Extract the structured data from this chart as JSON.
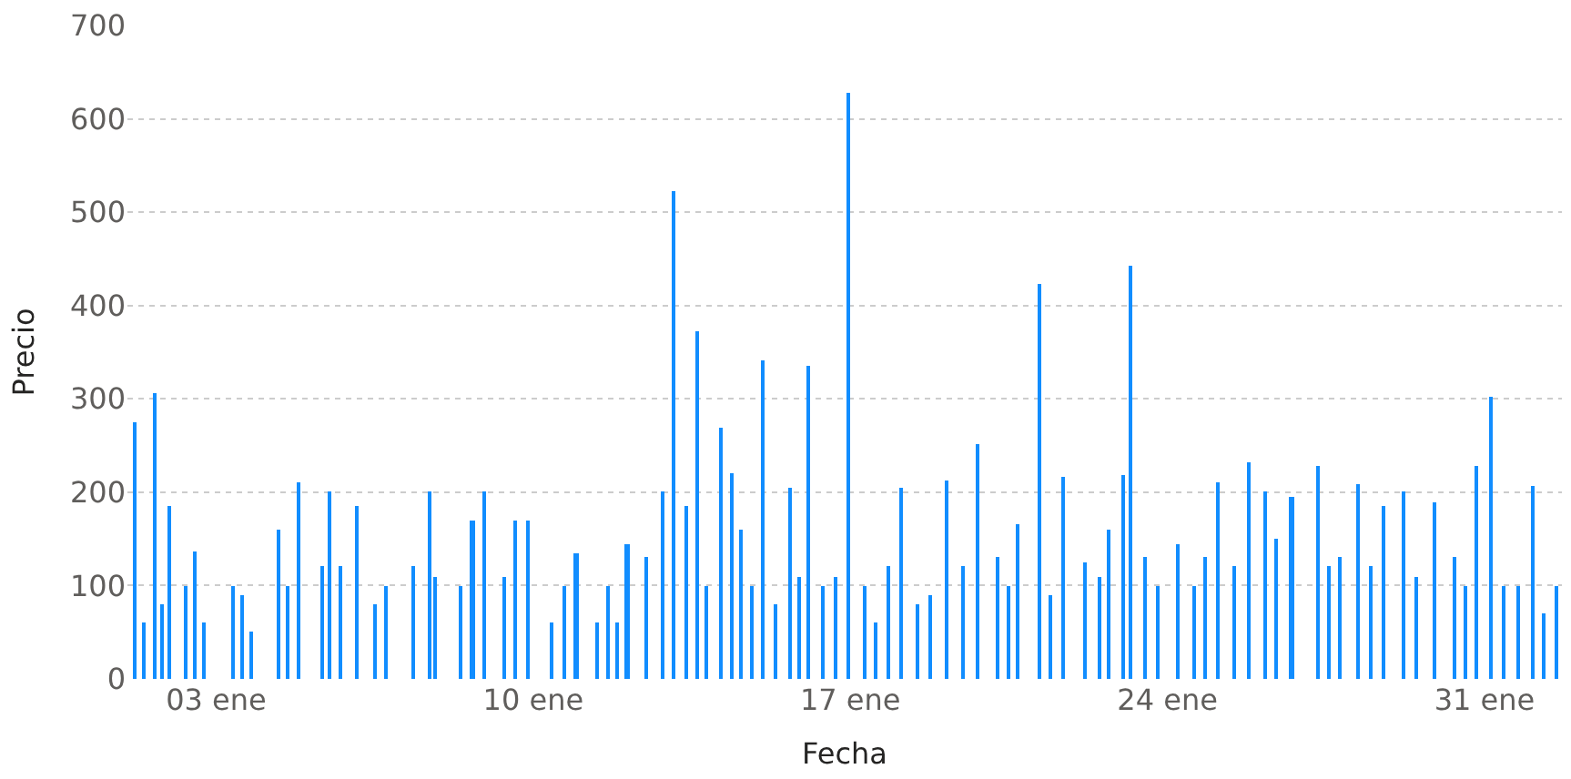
{
  "chart_data": {
    "type": "bar",
    "xlabel": "Fecha",
    "ylabel": "Precio",
    "color": "#118dff",
    "x": [
      "--01-01T05:00",
      "--01-01T10:00",
      "--01-01T16:00",
      "--01-01T20:00",
      "--01-01T23:00",
      "--01-02T08:00",
      "--01-02T13:00",
      "--01-02T18:00",
      "--01-03T09:00",
      "--01-03T14:00",
      "--01-03T19:00",
      "--01-04T09:00",
      "--01-04T14:00",
      "--01-04T20:00",
      "--01-05T08:00",
      "--01-05T12:00",
      "--01-05T18:00",
      "--01-06T03:00",
      "--01-06T12:00",
      "--01-06T18:00",
      "--01-07T09:00",
      "--01-07T17:00",
      "--01-07T20:00",
      "--01-08T10:00",
      "--01-08T16:00",
      "--01-08T22:00",
      "--01-09T09:00",
      "--01-09T15:00",
      "--01-09T21:00",
      "--01-10T10:00",
      "--01-10T17:00",
      "--01-10T23:00",
      "--01-11T10:00",
      "--01-11T16:00",
      "--01-11T21:00",
      "--01-12T02:00",
      "--01-12T12:00",
      "--01-12T21:00",
      "--01-13T03:00",
      "--01-13T09:00",
      "--01-13T15:00",
      "--01-13T20:00",
      "--01-14T04:00",
      "--01-14T09:00",
      "--01-14T14:00",
      "--01-14T20:00",
      "--01-15T02:00",
      "--01-15T09:00",
      "--01-15T16:00",
      "--01-15T21:00",
      "--01-16T02:00",
      "--01-16T10:00",
      "--01-16T16:00",
      "--01-16T23:00",
      "--01-17T08:00",
      "--01-17T14:00",
      "--01-17T20:00",
      "--01-18T03:00",
      "--01-18T12:00",
      "--01-18T19:00",
      "--01-19T03:00",
      "--01-19T12:00",
      "--01-19T20:00",
      "--01-20T06:00",
      "--01-20T12:00",
      "--01-20T17:00",
      "--01-21T04:00",
      "--01-21T10:00",
      "--01-21T17:00",
      "--01-22T05:00",
      "--01-22T12:00",
      "--01-22T17:00",
      "--01-23T01:00",
      "--01-23T05:00",
      "--01-23T12:00",
      "--01-23T19:00",
      "--01-24T06:00",
      "--01-24T14:00",
      "--01-24T20:00",
      "--01-25T03:00",
      "--01-25T12:00",
      "--01-25T19:00",
      "--01-26T04:00",
      "--01-26T10:00",
      "--01-26T18:00",
      "--01-27T08:00",
      "--01-27T14:00",
      "--01-27T20:00",
      "--01-28T05:00",
      "--01-28T12:00",
      "--01-28T19:00",
      "--01-29T05:00",
      "--01-29T12:00",
      "--01-29T22:00",
      "--01-30T08:00",
      "--01-30T14:00",
      "--01-30T20:00",
      "--01-31T04:00",
      "--01-31T10:00",
      "--01-31T18:00",
      "--02-01T02:00",
      "--02-01T08:00",
      "--02-01T14:00"
    ],
    "values": [
      275,
      60,
      307,
      80,
      185,
      100,
      136,
      60,
      100,
      90,
      50,
      160,
      100,
      210,
      120,
      200,
      120,
      185,
      80,
      100,
      120,
      200,
      110,
      100,
      170,
      200,
      110,
      170,
      170,
      60,
      100,
      135,
      60,
      100,
      60,
      145,
      130,
      200,
      523,
      185,
      372,
      100,
      270,
      220,
      160,
      100,
      342,
      80,
      205,
      110,
      336,
      100,
      110,
      628,
      100,
      60,
      120,
      205,
      80,
      90,
      212,
      120,
      252,
      130,
      100,
      165,
      424,
      90,
      216,
      125,
      110,
      160,
      218,
      442,
      130,
      100,
      145,
      100,
      130,
      210,
      120,
      232,
      200,
      150,
      195,
      228,
      120,
      130,
      208,
      120,
      185,
      200,
      110,
      190,
      130,
      100,
      228,
      302,
      100,
      100,
      207,
      70,
      100
    ],
    "xlim": [
      "--01-01T01:00",
      "--02-01T17:00"
    ],
    "xticks": [
      {
        "value": "--01-03",
        "label": "03 ene"
      },
      {
        "value": "--01-10",
        "label": "10 ene"
      },
      {
        "value": "--01-17",
        "label": "17 ene"
      },
      {
        "value": "--01-24",
        "label": "24 ene"
      },
      {
        "value": "--01-31",
        "label": "31 ene"
      }
    ],
    "ylim": [
      0,
      700
    ],
    "yticks": [
      0,
      100,
      200,
      300,
      400,
      500,
      600,
      700
    ],
    "grid": "y"
  }
}
